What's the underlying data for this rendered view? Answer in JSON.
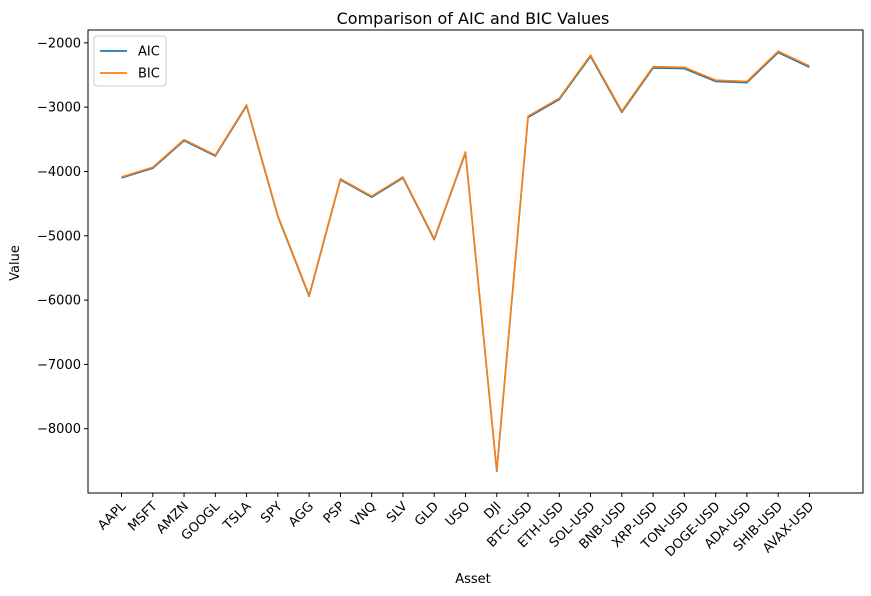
{
  "chart_data": {
    "type": "line",
    "title": "Comparison of AIC and BIC Values",
    "xlabel": "Asset",
    "ylabel": "Value",
    "categories": [
      "AAPL",
      "MSFT",
      "AMZN",
      "GOOGL",
      "TSLA",
      "SPY",
      "AGG",
      "PSP",
      "VNQ",
      "SLV",
      "GLD",
      "USO",
      "DJI",
      "BTC-USD",
      "ETH-USD",
      "SOL-USD",
      "BNB-USD",
      "XRP-USD",
      "TON-USD",
      "DOGE-USD",
      "ADA-USD",
      "SHIB-USD",
      "AVAX-USD"
    ],
    "ylim": [
      -9000,
      -1800
    ],
    "yticks": [
      -8000,
      -7000,
      -6000,
      -5000,
      -4000,
      -3000,
      -2000
    ],
    "ytick_labels": [
      "−8000",
      "−7000",
      "−6000",
      "−5000",
      "−4000",
      "−3000",
      "−2000"
    ],
    "grid": false,
    "legend_position": "top-left",
    "series": [
      {
        "name": "AIC",
        "color": "#1f77b4",
        "values": [
          -4100,
          -3950,
          -3520,
          -3760,
          -2980,
          -4700,
          -5940,
          -4130,
          -4400,
          -4100,
          -5060,
          -3710,
          -8660,
          -3160,
          -2880,
          -2210,
          -3080,
          -2390,
          -2400,
          -2600,
          -2620,
          -2150,
          -2380
        ]
      },
      {
        "name": "BIC",
        "color": "#ff7f0e",
        "values": [
          -4085,
          -3935,
          -3505,
          -3745,
          -2965,
          -4685,
          -5925,
          -4115,
          -4385,
          -4085,
          -5045,
          -3695,
          -8645,
          -3140,
          -2860,
          -2190,
          -3060,
          -2370,
          -2380,
          -2580,
          -2600,
          -2130,
          -2360
        ]
      }
    ]
  }
}
